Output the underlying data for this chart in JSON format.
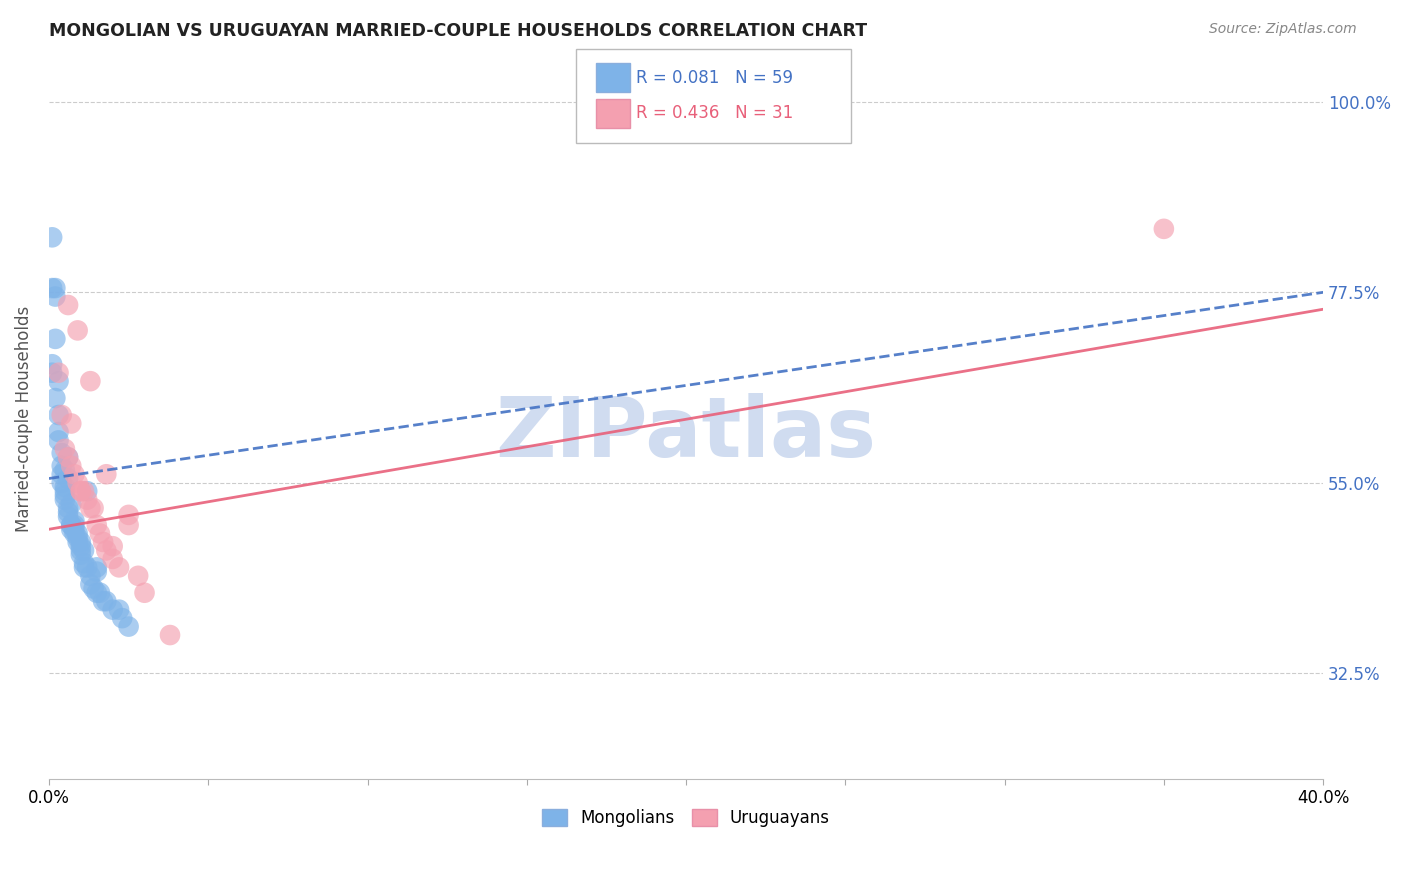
{
  "title": "MONGOLIAN VS URUGUAYAN MARRIED-COUPLE HOUSEHOLDS CORRELATION CHART",
  "source": "Source: ZipAtlas.com",
  "ylabel": "Married-couple Households",
  "xlim": [
    0.0,
    0.4
  ],
  "ylim": [
    0.2,
    1.05
  ],
  "yticks": [
    0.325,
    0.55,
    0.775,
    1.0
  ],
  "ytick_labels": [
    "32.5%",
    "55.0%",
    "77.5%",
    "100.0%"
  ],
  "xticks": [
    0.0,
    0.05,
    0.1,
    0.15,
    0.2,
    0.25,
    0.3,
    0.35,
    0.4
  ],
  "xtick_labels": [
    "0.0%",
    "",
    "",
    "",
    "",
    "",
    "",
    "",
    "40.0%"
  ],
  "mongolian_R": 0.081,
  "mongolian_N": 59,
  "uruguayan_R": 0.436,
  "uruguayan_N": 31,
  "mongolian_color": "#7EB3E8",
  "uruguayan_color": "#F4A0B0",
  "mongolian_line_color": "#4472C4",
  "uruguayan_line_color": "#E8607A",
  "background_color": "#FFFFFF",
  "grid_color": "#CCCCCC",
  "watermark": "ZIPatlas",
  "watermark_color": "#D0DCF0",
  "mong_x": [
    0.001,
    0.001,
    0.001,
    0.002,
    0.002,
    0.003,
    0.003,
    0.003,
    0.004,
    0.004,
    0.004,
    0.005,
    0.005,
    0.005,
    0.005,
    0.006,
    0.006,
    0.006,
    0.006,
    0.007,
    0.007,
    0.007,
    0.008,
    0.008,
    0.008,
    0.009,
    0.009,
    0.01,
    0.01,
    0.01,
    0.011,
    0.011,
    0.012,
    0.012,
    0.013,
    0.013,
    0.014,
    0.015,
    0.015,
    0.016,
    0.017,
    0.018,
    0.02,
    0.022,
    0.023,
    0.001,
    0.002,
    0.002,
    0.003,
    0.004,
    0.005,
    0.006,
    0.007,
    0.008,
    0.009,
    0.01,
    0.011,
    0.015,
    0.025
  ],
  "mong_y": [
    0.84,
    0.78,
    0.68,
    0.78,
    0.77,
    0.67,
    0.63,
    0.61,
    0.57,
    0.56,
    0.55,
    0.545,
    0.54,
    0.535,
    0.53,
    0.52,
    0.515,
    0.51,
    0.58,
    0.5,
    0.5,
    0.495,
    0.49,
    0.495,
    0.5,
    0.49,
    0.485,
    0.48,
    0.47,
    0.475,
    0.47,
    0.455,
    0.45,
    0.54,
    0.44,
    0.43,
    0.425,
    0.42,
    0.45,
    0.42,
    0.41,
    0.41,
    0.4,
    0.4,
    0.39,
    0.69,
    0.72,
    0.65,
    0.6,
    0.585,
    0.565,
    0.555,
    0.525,
    0.505,
    0.48,
    0.465,
    0.45,
    0.445,
    0.38
  ],
  "urug_x": [
    0.003,
    0.005,
    0.006,
    0.007,
    0.008,
    0.009,
    0.01,
    0.011,
    0.012,
    0.013,
    0.014,
    0.016,
    0.017,
    0.018,
    0.02,
    0.022,
    0.025,
    0.028,
    0.006,
    0.009,
    0.013,
    0.018,
    0.025,
    0.004,
    0.007,
    0.01,
    0.015,
    0.02,
    0.03,
    0.038,
    0.35
  ],
  "urug_y": [
    0.68,
    0.59,
    0.58,
    0.62,
    0.56,
    0.55,
    0.54,
    0.54,
    0.53,
    0.52,
    0.52,
    0.49,
    0.48,
    0.56,
    0.475,
    0.45,
    0.5,
    0.44,
    0.76,
    0.73,
    0.67,
    0.47,
    0.512,
    0.63,
    0.57,
    0.54,
    0.5,
    0.46,
    0.42,
    0.37,
    0.85
  ]
}
